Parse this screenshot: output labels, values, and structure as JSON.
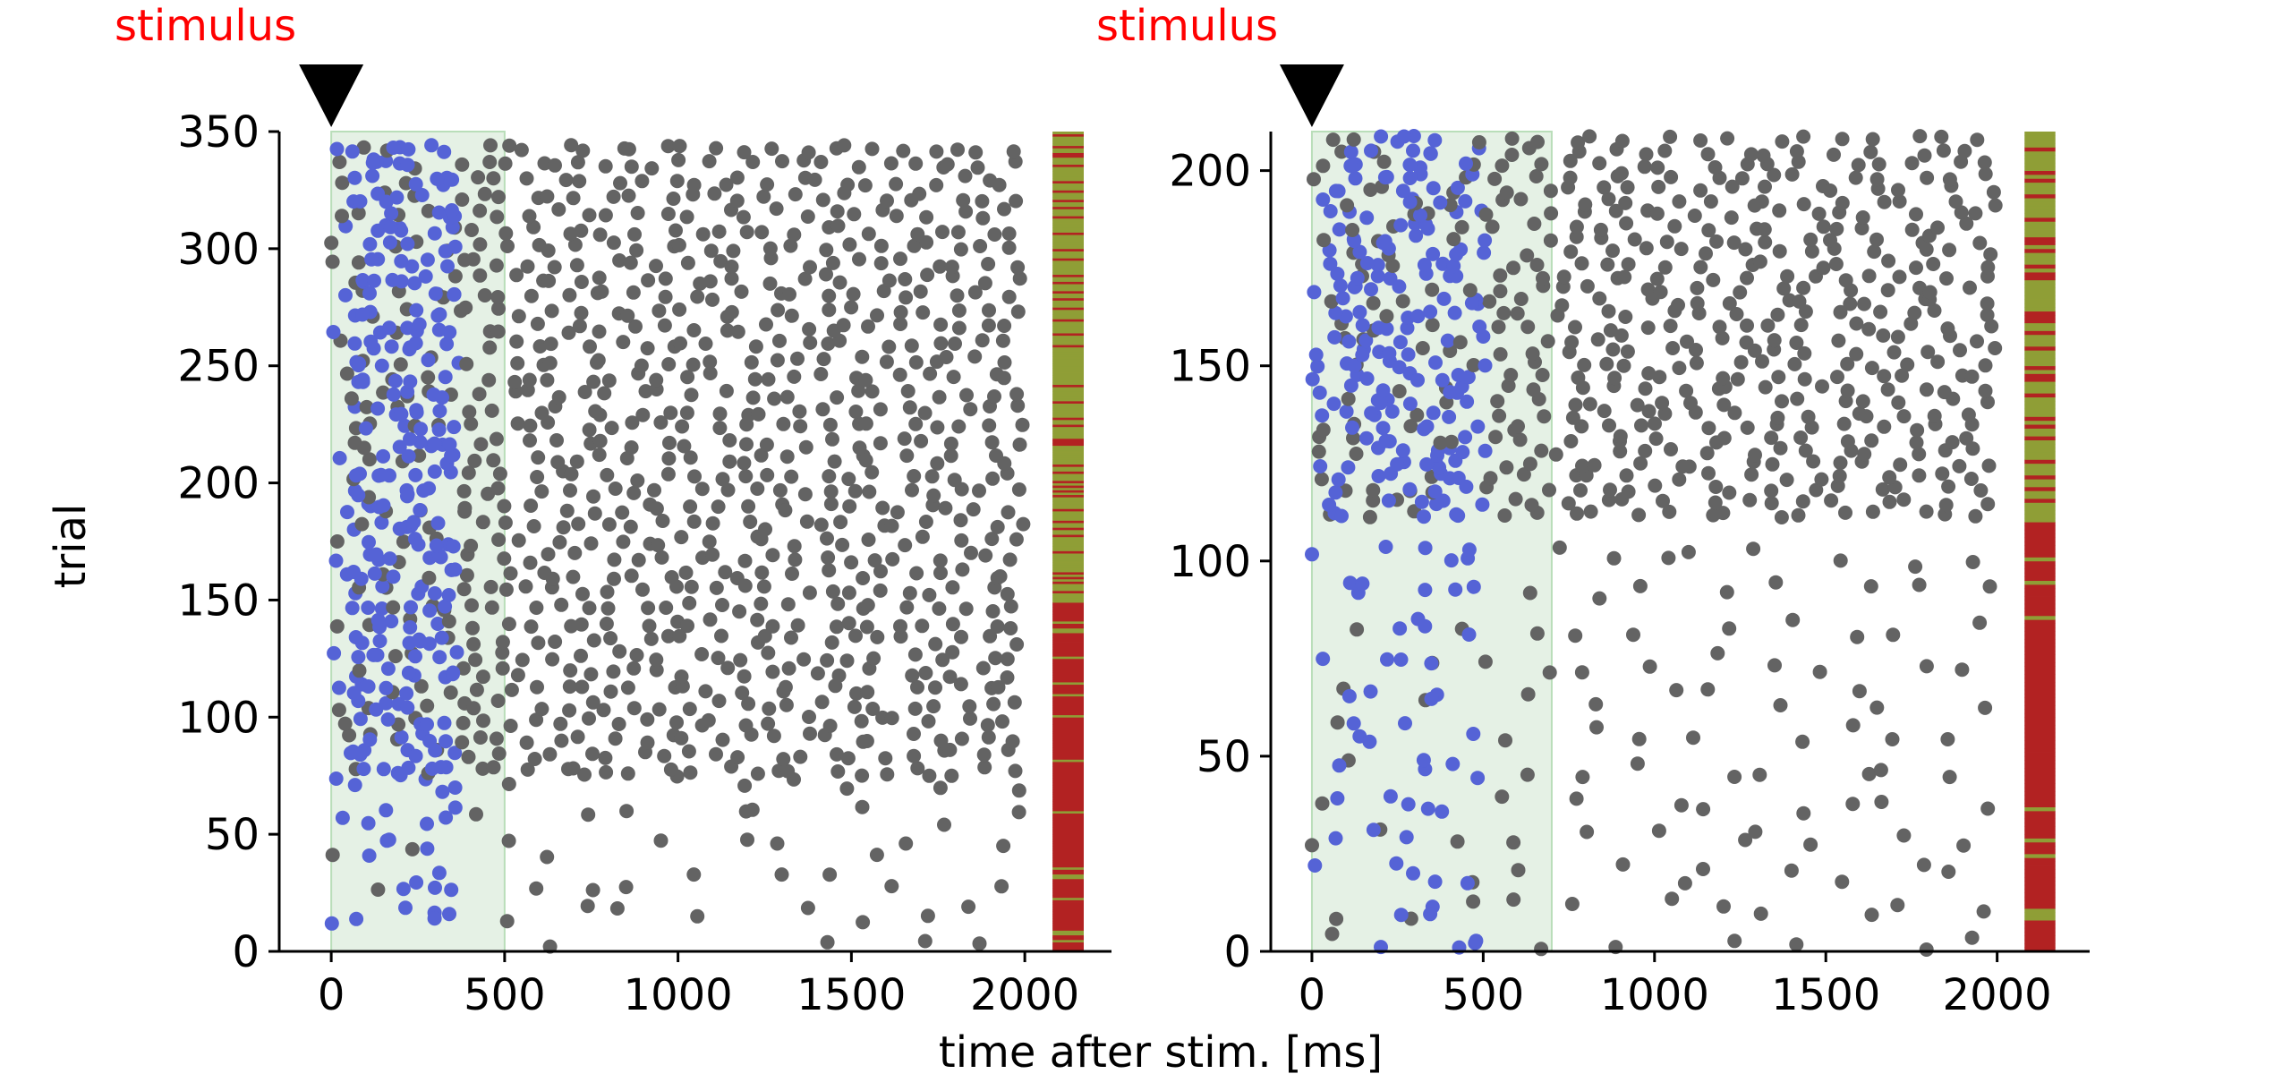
{
  "figure": {
    "xlabel": "time after stim. [ms]",
    "ylabel": "trial"
  },
  "colors": {
    "pre_spike": "#5563d6",
    "post_spike": "#636363",
    "window_fill": "#dcecdc",
    "window_edge": "#b9deb9",
    "outcome_a": "#b22222",
    "outcome_b": "#8f9e36",
    "stimulus_text": "#ff0000"
  },
  "chart_data": [
    {
      "type": "scatter",
      "title": "",
      "stimulus_label": "stimulus",
      "stimulus_time": 0,
      "window_end_ms": 500,
      "xlim": [
        -150,
        2250
      ],
      "ylim": [
        0,
        350
      ],
      "xticks": [
        "0",
        "500",
        "1000",
        "1500",
        "2000"
      ],
      "yticks": [
        "0",
        "50",
        "100",
        "150",
        "200",
        "250",
        "300",
        "350"
      ],
      "n_trials": 350,
      "spike_x_range": [
        0,
        2000
      ],
      "outcome_bar_x_range": [
        2080,
        2170
      ],
      "outcome_segments": [
        {
          "from": 0,
          "to": 150,
          "outcome": "a"
        },
        {
          "from": 150,
          "to": 350,
          "outcome": "b"
        }
      ],
      "outcome_mixing": {
        "a_region_minor_b_frac": 0.12,
        "b_region_minor_a_frac": 0.22
      },
      "density_bands": [
        {
          "trials": [
            0,
            75
          ],
          "row_step": 14,
          "spikes_per_row": 10
        },
        {
          "trials": [
            75,
            350
          ],
          "row_step": 7,
          "spikes_per_row": 26
        }
      ],
      "pre_window_spikes_per_row": 4
    },
    {
      "type": "scatter",
      "title": "",
      "stimulus_label": "stimulus",
      "stimulus_time": 0,
      "window_end_ms": 700,
      "xlim": [
        -120,
        2270
      ],
      "ylim": [
        0,
        210
      ],
      "xticks": [
        "0",
        "500",
        "1000",
        "1500",
        "2000"
      ],
      "yticks": [
        "0",
        "50",
        "100",
        "150",
        "200"
      ],
      "n_trials": 210,
      "spike_x_range": [
        0,
        2000
      ],
      "outcome_bar_x_range": [
        2080,
        2170
      ],
      "outcome_segments": [
        {
          "from": 0,
          "to": 110,
          "outcome": "a"
        },
        {
          "from": 110,
          "to": 210,
          "outcome": "b"
        }
      ],
      "outcome_mixing": {
        "a_region_minor_b_frac": 0.1,
        "b_region_minor_a_frac": 0.25
      },
      "density_bands": [
        {
          "trials": [
            0,
            110
          ],
          "row_step": 9,
          "spikes_per_row": 11
        },
        {
          "trials": [
            110,
            210
          ],
          "row_step": 3.2,
          "spikes_per_row": 20
        }
      ],
      "pre_window_spikes_per_row": 3
    }
  ]
}
